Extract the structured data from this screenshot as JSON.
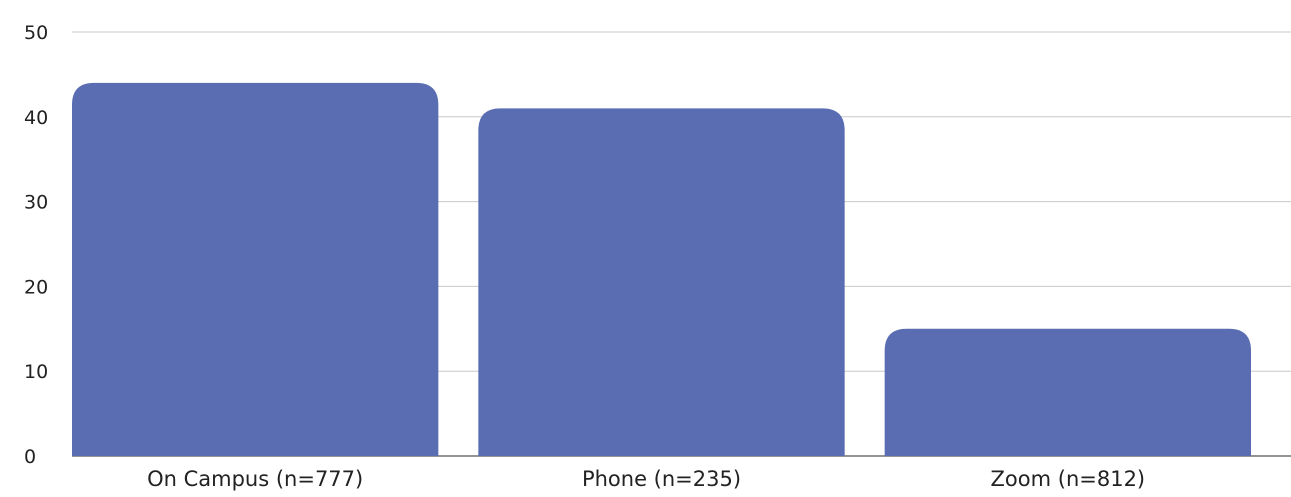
{
  "chart_data": {
    "type": "bar",
    "categories": [
      "On Campus (n=777)",
      "Phone (n=235)",
      "Zoom (n=812)"
    ],
    "values": [
      44,
      41,
      15
    ],
    "ylim": [
      0,
      50
    ],
    "yticks": [
      0,
      10,
      20,
      30,
      40,
      50
    ],
    "grid": true,
    "bar_color": "#5a6db3",
    "grid_color": "#c8c8c8",
    "title": "",
    "xlabel": "",
    "ylabel": ""
  }
}
